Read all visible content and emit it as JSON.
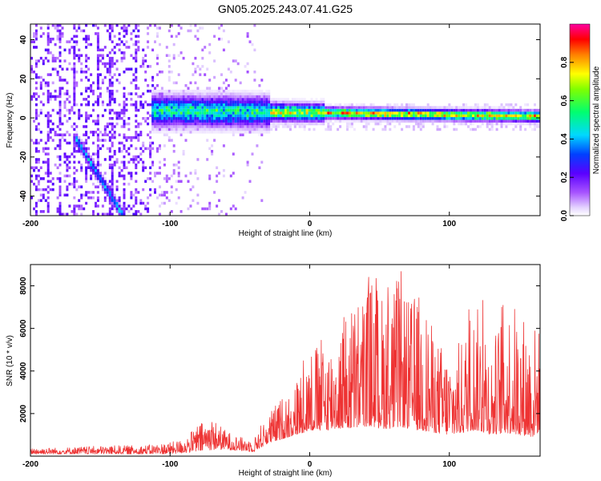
{
  "title": "GN05.2025.243.07.41.G25",
  "colors": {
    "snr_line": "#ee3333",
    "spectrogram_cmap": [
      "#ffffff",
      "#d8b8ff",
      "#9a40ff",
      "#5a00ff",
      "#0050ff",
      "#00e0ff",
      "#00ff60",
      "#ffff00",
      "#ff8000",
      "#ff0000",
      "#ff00a0"
    ]
  },
  "chart_data": [
    {
      "type": "heatmap",
      "xlabel": "Height of straight line (km)",
      "ylabel": "Frequency (Hz)",
      "xlim": [
        -200,
        165
      ],
      "ylim": [
        -50,
        48
      ],
      "x_ticks": [
        "-200",
        "-100",
        "0",
        "100"
      ],
      "y_ticks": [
        "-40",
        "-20",
        "0",
        "20",
        "40"
      ],
      "colorbar": {
        "label": "Normalized spectral amplitude",
        "range": [
          0,
          1
        ],
        "ticks": [
          "0.0",
          "0.2",
          "0.4",
          "0.6",
          "0.8"
        ]
      },
      "features": [
        {
          "kind": "carrier_line",
          "x": [
            -110,
            165
          ],
          "freq_start_hz": 2,
          "freq_end_hz": 0,
          "peak_amplitude": 0.95
        },
        {
          "kind": "diagonal_streak",
          "x": [
            -165,
            -135
          ],
          "freq_hz": [
            -15,
            -50
          ],
          "peak_amplitude": 0.45
        },
        {
          "kind": "noise_region",
          "x": [
            -200,
            -35
          ]
        }
      ]
    },
    {
      "type": "line",
      "xlabel": "Height of straight line (km)",
      "ylabel": "SNR (10 * v/v)",
      "xlim": [
        -200,
        165
      ],
      "ylim": [
        0,
        9000
      ],
      "x_ticks": [
        "-200",
        "-100",
        "0",
        "100"
      ],
      "y_ticks": [
        "2000",
        "4000",
        "6000",
        "8000"
      ],
      "series": [
        {
          "x": [
            -200,
            -180,
            -160,
            -140,
            -120,
            -100,
            -90,
            -80,
            -70,
            -60,
            -50,
            -40,
            -35,
            -30,
            -20,
            -10,
            0,
            10,
            20,
            30,
            40,
            45,
            50,
            60,
            65,
            70,
            80,
            90,
            100,
            110,
            115,
            120,
            125,
            130,
            140,
            150,
            160,
            165
          ],
          "envelope_max": [
            400,
            400,
            450,
            500,
            500,
            650,
            800,
            1500,
            1800,
            1200,
            900,
            800,
            1500,
            2000,
            2800,
            3600,
            5200,
            5600,
            5800,
            7400,
            8000,
            8900,
            7800,
            8000,
            8900,
            7400,
            7800,
            5600,
            5000,
            5600,
            7200,
            7000,
            7400,
            5200,
            7600,
            7000,
            6400,
            6000
          ],
          "baseline": [
            100,
            100,
            100,
            100,
            100,
            100,
            150,
            200,
            300,
            300,
            250,
            200,
            400,
            600,
            800,
            1000,
            1200,
            1200,
            1300,
            1300,
            1400,
            1400,
            1300,
            1300,
            1400,
            1300,
            1200,
            1100,
            1000,
            1100,
            1200,
            1200,
            1100,
            1000,
            1100,
            1000,
            900,
            1200
          ]
        }
      ]
    }
  ]
}
